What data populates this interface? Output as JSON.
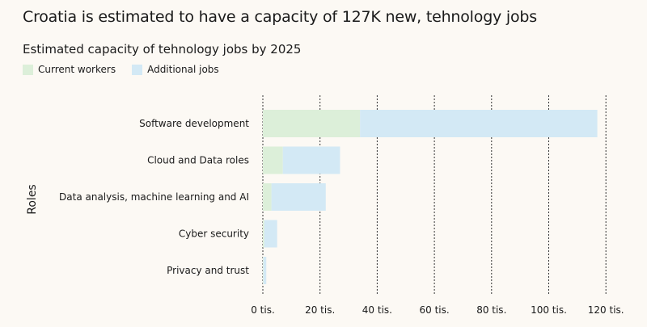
{
  "headline": "Croatia is estimated to have a capacity of 127K new, tehnology jobs",
  "colors": {
    "current": "#dcefd9",
    "additional": "#d3e9f5",
    "grid": "#333333",
    "background": "#fcf9f4"
  },
  "chart_data": {
    "type": "bar",
    "orientation": "horizontal",
    "stacked": true,
    "title": "Estimated capacity of tehnology jobs by 2025",
    "ylabel": "Roles",
    "xlabel": "",
    "categories": [
      "Software development",
      "Cloud and Data roles",
      "Data analysis, machine learning and AI",
      "Cyber security",
      "Privacy and trust"
    ],
    "series": [
      {
        "name": "Current workers",
        "values": [
          34000,
          7000,
          3000,
          500,
          200
        ]
      },
      {
        "name": "Additional jobs",
        "values": [
          83000,
          20000,
          19000,
          4500,
          1000
        ]
      }
    ],
    "xlim": [
      0,
      127000
    ],
    "xticks": [
      0,
      20000,
      40000,
      60000,
      80000,
      100000,
      120000
    ],
    "xtick_labels": [
      "0 tis.",
      "20 tis.",
      "40 tis.",
      "60 tis.",
      "80 tis.",
      "100 tis.",
      "120 tis."
    ],
    "grid": "vertical dashed",
    "legend": "top-left"
  }
}
